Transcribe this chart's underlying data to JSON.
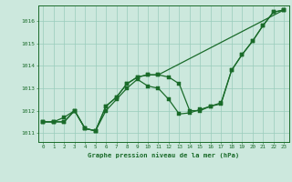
{
  "title": "Graphe pression niveau de la mer (hPa)",
  "bg_color": "#cce8dd",
  "grid_color": "#99ccbb",
  "line_color": "#1a6b2a",
  "xlim": [
    -0.5,
    23.5
  ],
  "ylim": [
    1010.6,
    1016.7
  ],
  "xticks": [
    0,
    1,
    2,
    3,
    4,
    5,
    6,
    7,
    8,
    9,
    10,
    11,
    12,
    13,
    14,
    15,
    16,
    17,
    18,
    19,
    20,
    21,
    22,
    23
  ],
  "yticks": [
    1011,
    1012,
    1013,
    1014,
    1015,
    1016
  ],
  "line1_x": [
    0,
    1,
    2,
    3,
    4,
    5,
    6,
    7,
    8,
    9,
    10,
    11,
    12,
    13,
    14,
    15,
    16,
    17,
    18,
    19,
    20,
    21,
    22,
    23
  ],
  "line1_y": [
    1011.5,
    1011.5,
    1011.5,
    1012.0,
    1011.2,
    1011.1,
    1012.2,
    1012.6,
    1013.2,
    1013.5,
    1013.6,
    1013.6,
    1013.5,
    1013.2,
    1012.0,
    1012.0,
    1012.2,
    1012.3,
    1013.8,
    1014.5,
    1015.1,
    1015.8,
    1016.4,
    1016.5
  ],
  "line2_x": [
    0,
    1,
    2,
    3,
    4,
    5,
    6,
    7,
    8,
    9,
    10,
    11,
    12,
    13,
    14,
    15,
    16,
    17,
    18,
    19,
    20,
    21,
    22,
    23
  ],
  "line2_y": [
    1011.5,
    1011.5,
    1011.7,
    1012.0,
    1011.2,
    1011.1,
    1012.0,
    1012.5,
    1013.0,
    1013.4,
    1013.1,
    1013.0,
    1012.5,
    1011.85,
    1011.9,
    1012.05,
    1012.2,
    1012.35,
    1013.8,
    1014.5,
    1015.1,
    1015.8,
    1016.4,
    1016.5
  ],
  "line3_x": [
    0,
    1,
    2,
    3,
    4,
    5,
    6,
    7,
    8,
    9,
    10,
    11,
    23
  ],
  "line3_y": [
    1011.5,
    1011.5,
    1011.5,
    1012.0,
    1011.2,
    1011.1,
    1012.2,
    1012.6,
    1013.2,
    1013.5,
    1013.6,
    1013.6,
    1016.5
  ]
}
